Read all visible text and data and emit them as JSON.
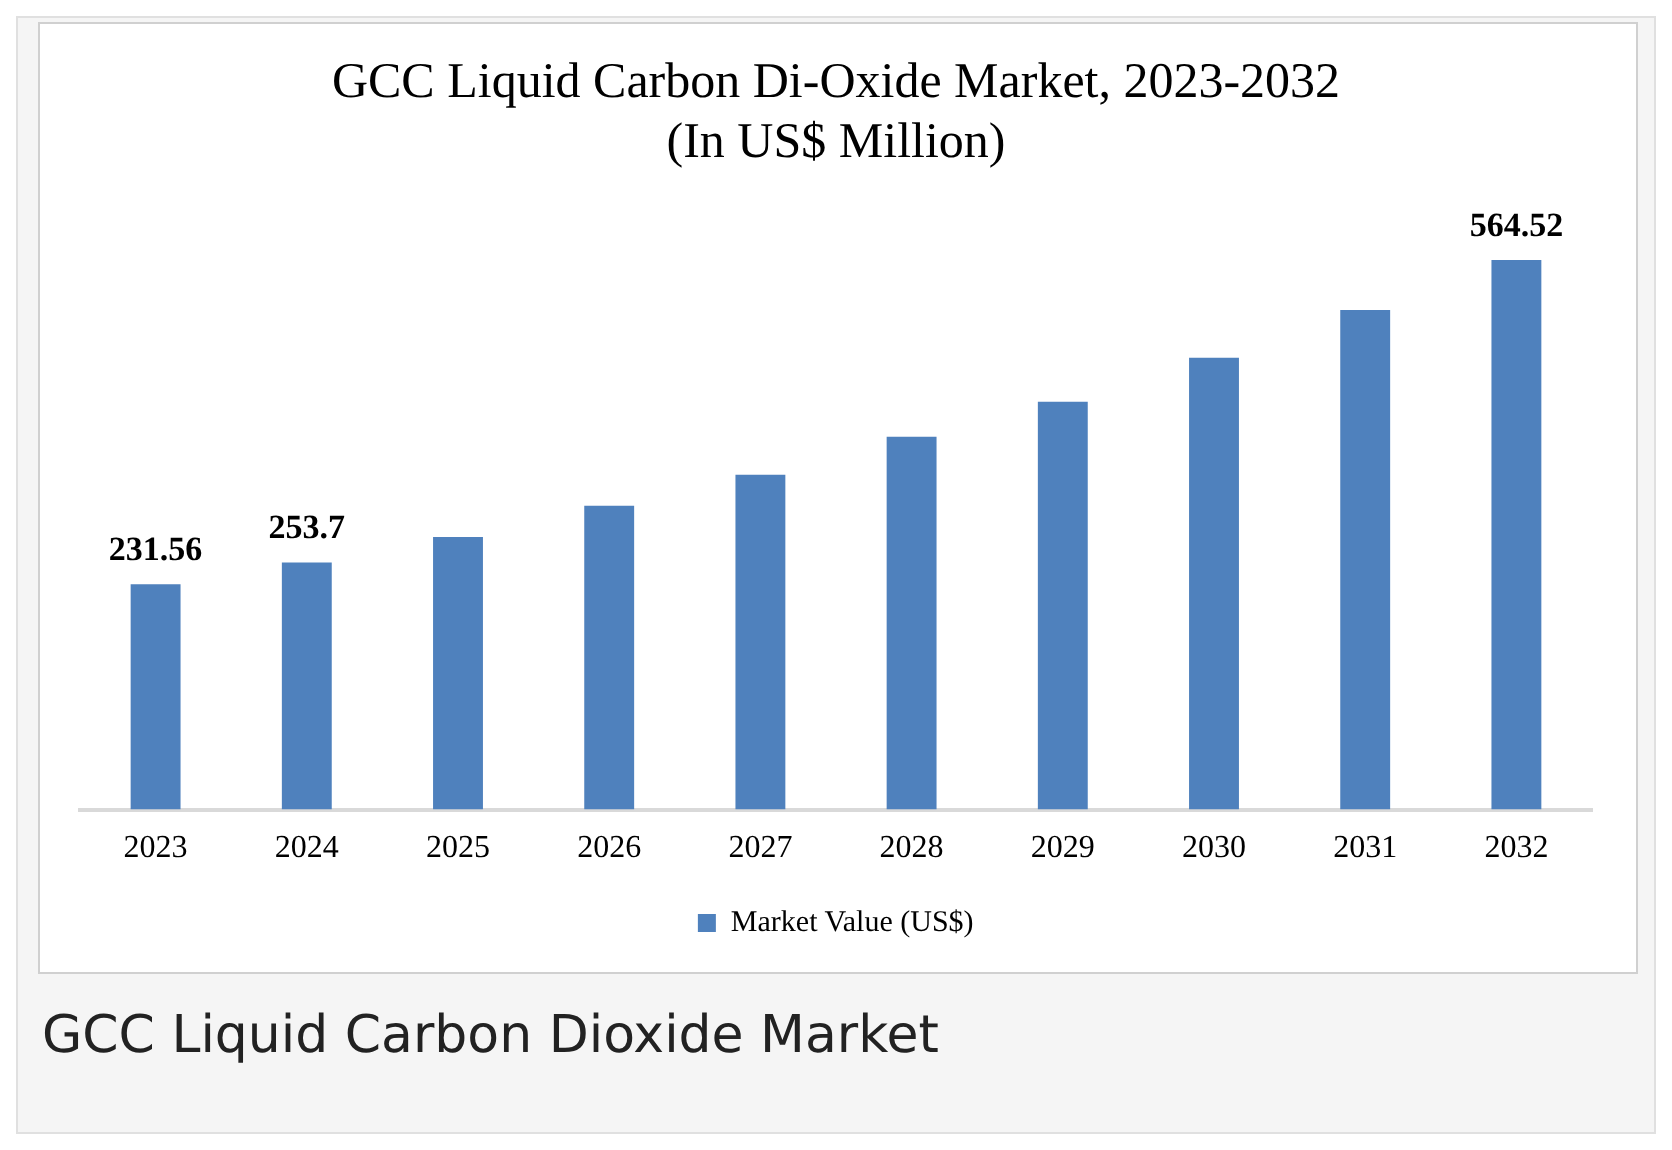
{
  "chart_data": {
    "type": "bar",
    "title": "GCC Liquid Carbon Di-Oxide Market, 2023-2032",
    "subtitle": "(In US$ Million)",
    "categories": [
      "2023",
      "2024",
      "2025",
      "2026",
      "2027",
      "2028",
      "2029",
      "2030",
      "2031",
      "2032"
    ],
    "series": [
      {
        "name": "Market Value (US$)",
        "color": "#4f81bd",
        "values": [
          231.56,
          253.7,
          280,
          312,
          344,
          383,
          419,
          464,
          513,
          564.52
        ],
        "value_labels": [
          "231.56",
          "253.7",
          null,
          null,
          null,
          null,
          null,
          null,
          null,
          "564.52"
        ]
      }
    ],
    "legend": "bottom",
    "grid": false,
    "annotations": [
      "GCC Liquid Carbon Dioxide Market"
    ]
  }
}
